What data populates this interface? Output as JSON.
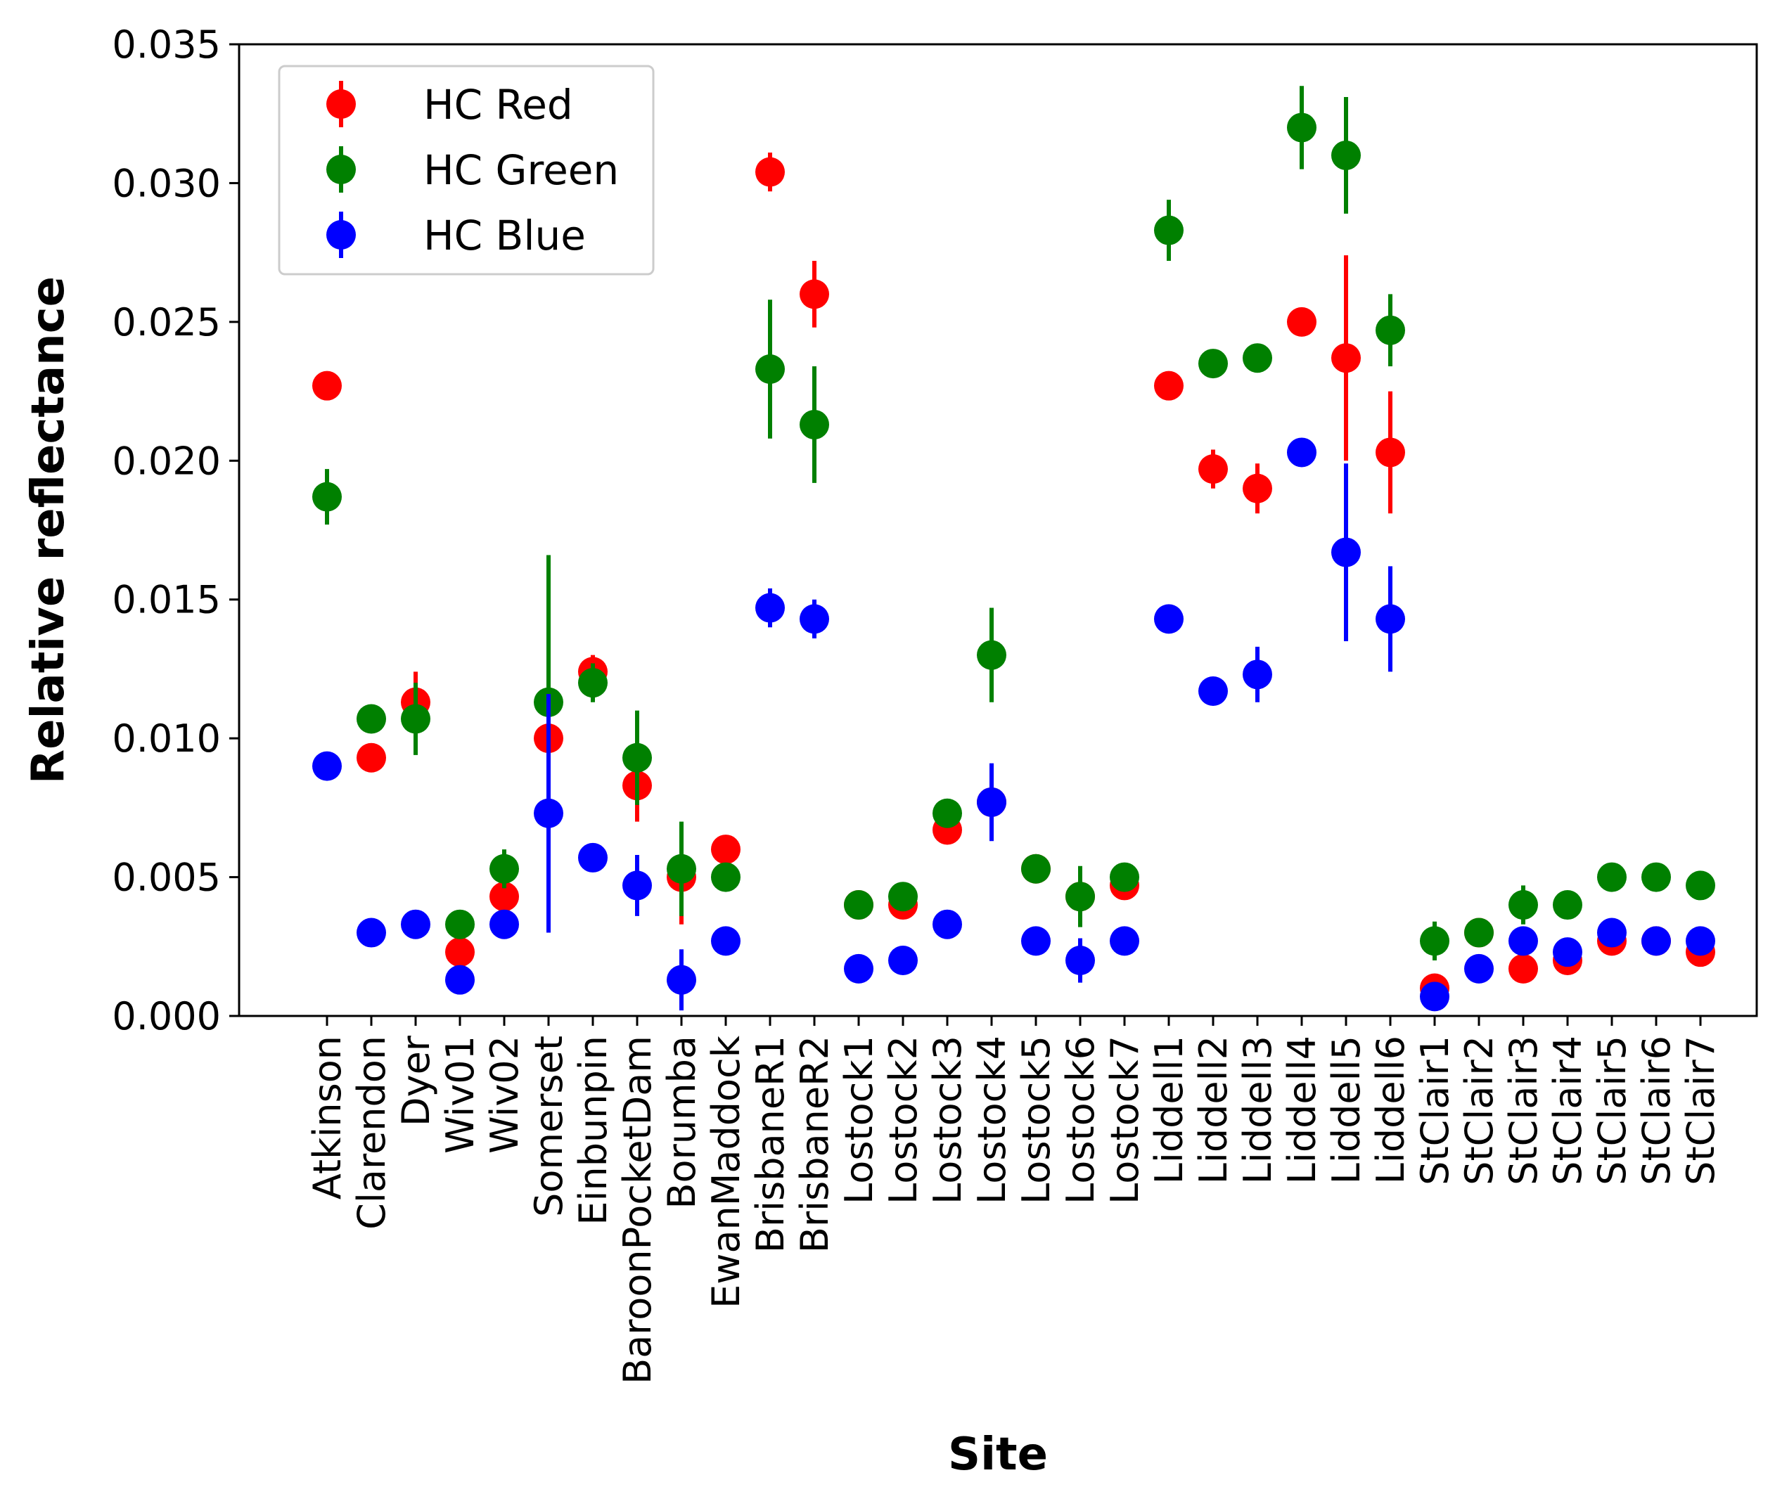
{
  "chart_data": {
    "type": "scatter",
    "xlabel": "Site",
    "ylabel": "Relative reflectance",
    "ylim": [
      0,
      0.035
    ],
    "yticks": [
      "0.000",
      "0.005",
      "0.010",
      "0.015",
      "0.020",
      "0.025",
      "0.030",
      "0.035"
    ],
    "ytick_values": [
      0,
      0.005,
      0.01,
      0.015,
      0.02,
      0.025,
      0.03,
      0.035
    ],
    "grid": false,
    "legend_position": "top-left",
    "categories": [
      "Atkinson",
      "Clarendon",
      "Dyer",
      "Wiv01",
      "Wiv02",
      "Somerset",
      "Einbunpin",
      "BaroonPocketDam",
      "Borumba",
      "EwanMaddock",
      "BrisbaneR1",
      "BrisbaneR2",
      "Lostock1",
      "Lostock2",
      "Lostock3",
      "Lostock4",
      "Lostock5",
      "Lostock6",
      "Lostock7",
      "Liddell1",
      "Liddell2",
      "Liddell3",
      "Liddell4",
      "Liddell5",
      "Liddell6",
      "StClair1",
      "StClair2",
      "StClair3",
      "StClair4",
      "StClair5",
      "StClair6",
      "StClair7"
    ],
    "series": [
      {
        "name": "HC Red",
        "color": "#ff0000",
        "values": [
          0.0227,
          0.0093,
          0.0113,
          0.0023,
          0.0043,
          0.01,
          0.0124,
          0.0083,
          0.005,
          0.006,
          0.0304,
          0.026,
          0.004,
          0.004,
          0.0067,
          0.0077,
          0.0053,
          0.0043,
          0.0047,
          0.0227,
          0.0197,
          0.019,
          0.025,
          0.0237,
          0.0203,
          0.001,
          0.003,
          0.0017,
          0.002,
          0.0027,
          0.0027,
          0.0023
        ],
        "errors": [
          0.0003,
          0.0003,
          0.0011,
          0.0003,
          0.0003,
          0.0003,
          0.0006,
          0.0013,
          0.0017,
          0.0003,
          0.0007,
          0.0012,
          0.0003,
          0.0003,
          0.0003,
          0.0003,
          0.0003,
          0.0003,
          0.0003,
          0.0003,
          0.0007,
          0.0009,
          0.0003,
          0.0037,
          0.0022,
          0.0003,
          0.0003,
          0.0003,
          0.0003,
          0.0003,
          0.0003,
          0.0003
        ]
      },
      {
        "name": "HC Green",
        "color": "#008000",
        "values": [
          0.0187,
          0.0107,
          0.0107,
          0.0033,
          0.0053,
          0.0113,
          0.012,
          0.0093,
          0.0053,
          0.005,
          0.0233,
          0.0213,
          0.004,
          0.0043,
          0.0073,
          0.013,
          0.0053,
          0.0043,
          0.005,
          0.0283,
          0.0235,
          0.0237,
          0.032,
          0.031,
          0.0247,
          0.0027,
          0.003,
          0.004,
          0.004,
          0.005,
          0.005,
          0.0047
        ],
        "errors": [
          0.001,
          0.0003,
          0.0013,
          0.0003,
          0.0007,
          0.0053,
          0.0007,
          0.0017,
          0.0017,
          0.0003,
          0.0025,
          0.0021,
          0.0003,
          0.0003,
          0.0003,
          0.0017,
          0.0003,
          0.0011,
          0.0003,
          0.0011,
          0.0003,
          0.0003,
          0.0015,
          0.0021,
          0.0013,
          0.0007,
          0.0003,
          0.0007,
          0.0003,
          0.0003,
          0.0003,
          0.0003
        ]
      },
      {
        "name": "HC Blue",
        "color": "#0000ff",
        "values": [
          0.009,
          0.003,
          0.0033,
          0.0013,
          0.0033,
          0.0073,
          0.0057,
          0.0047,
          0.0013,
          0.0027,
          0.0147,
          0.0143,
          0.0017,
          0.002,
          0.0033,
          0.0077,
          0.0027,
          0.002,
          0.0027,
          0.0143,
          0.0117,
          0.0123,
          0.0203,
          0.0167,
          0.0143,
          0.0007,
          0.0017,
          0.0027,
          0.0023,
          0.003,
          0.0027,
          0.0027
        ],
        "errors": [
          0.0003,
          0.0003,
          0.0003,
          0.0003,
          0.0003,
          0.0043,
          0.0003,
          0.0011,
          0.0011,
          0.0003,
          0.0007,
          0.0007,
          0.0003,
          0.0003,
          0.0003,
          0.0014,
          0.0003,
          0.0008,
          0.0003,
          0.0005,
          0.0003,
          0.001,
          0.0003,
          0.0032,
          0.0019,
          0.0003,
          0.0003,
          0.0003,
          0.0003,
          0.0003,
          0.0003,
          0.0003
        ]
      }
    ]
  }
}
